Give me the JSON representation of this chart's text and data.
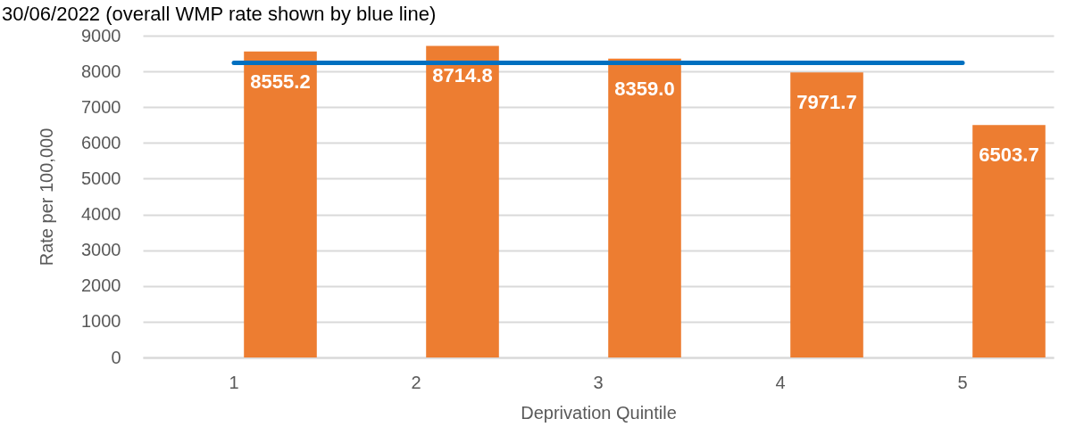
{
  "chart_data": {
    "type": "bar",
    "title": "30/06/2022 (overall WMP rate shown by blue line)",
    "xlabel": "Deprivation Quintile",
    "ylabel": "Rate per 100,000",
    "categories": [
      "1",
      "2",
      "3",
      "4",
      "5"
    ],
    "series": [
      {
        "color": "#ed7d31",
        "values": [
          8555.2,
          8714.8,
          8359.0,
          7971.7,
          6503.7
        ],
        "value_labels": [
          "8555.2",
          "8714.8",
          "8359.0",
          "7971.7",
          "6503.7"
        ]
      },
      {
        "type": "line",
        "color": "#0070c0",
        "values": [
          8240,
          8240,
          8240,
          8240,
          8240
        ]
      }
    ],
    "ylim": [
      0,
      9000
    ],
    "yticks": [
      0,
      1000,
      2000,
      3000,
      4000,
      5000,
      6000,
      7000,
      8000,
      9000
    ],
    "grid": "y"
  }
}
